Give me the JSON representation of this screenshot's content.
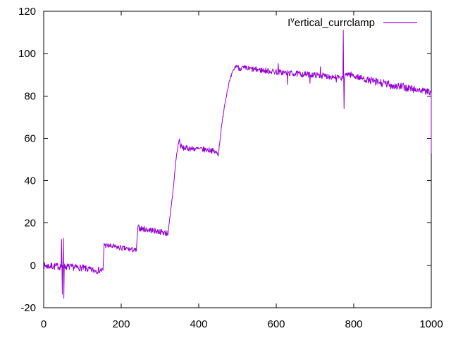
{
  "chart_data": {
    "type": "line",
    "title": "",
    "legend": {
      "full_label": "Iᵛertical_currclamp",
      "pre": "I",
      "sup": "v",
      "post": "ertical_currclamp",
      "position": "top-right"
    },
    "line_color": "#9400d3",
    "axis_color": "#000000",
    "text_color": "#000000",
    "background_color": "#ffffff",
    "xlabel": "",
    "ylabel": "",
    "xlim": [
      0,
      1000
    ],
    "ylim": [
      -20,
      120
    ],
    "xticks": [
      0,
      200,
      400,
      600,
      800,
      1000
    ],
    "yticks": [
      -20,
      0,
      20,
      40,
      60,
      80,
      100,
      120
    ],
    "grid": false,
    "signal": {
      "description": "noisy staircase signal: ~0 until x=154, step to ~9, step to ~17 at x=241, ramp to ~60 at x=350, plateau ~55, rise at x=450 to peak ~94 at x=500, slow decay to ~82 at x=1000, final drop to ~53; spike bursts at x~46-52 (+12/-15) and x~773 (+111/+74)",
      "sample_step": 1,
      "seed": 7,
      "anchors": [
        [
          0,
          -0.3
        ],
        [
          44,
          -0.5
        ],
        [
          56,
          -0.6
        ],
        [
          100,
          -1.2
        ],
        [
          122,
          -2.2
        ],
        [
          153,
          -2.4
        ],
        [
          156,
          10.4
        ],
        [
          159,
          9.4
        ],
        [
          200,
          8.2
        ],
        [
          239,
          7.0
        ],
        [
          243,
          17.9
        ],
        [
          250,
          17.4
        ],
        [
          300,
          15.9
        ],
        [
          321,
          15.1
        ],
        [
          333,
          34
        ],
        [
          342,
          51
        ],
        [
          347,
          57
        ],
        [
          350,
          59.6
        ],
        [
          352,
          56.8
        ],
        [
          357,
          55.5
        ],
        [
          380,
          55.2
        ],
        [
          432,
          54.4
        ],
        [
          446,
          53.1
        ],
        [
          451,
          52.6
        ],
        [
          454,
          58
        ],
        [
          460,
          67
        ],
        [
          466,
          75
        ],
        [
          472,
          81
        ],
        [
          478,
          86
        ],
        [
          485,
          90
        ],
        [
          492,
          93
        ],
        [
          497,
          94.4
        ],
        [
          503,
          93.2
        ],
        [
          515,
          93.1
        ],
        [
          560,
          92.2
        ],
        [
          600,
          91.4
        ],
        [
          640,
          90.6
        ],
        [
          700,
          89.9
        ],
        [
          740,
          89.2
        ],
        [
          762,
          88.8
        ],
        [
          766,
          87.8
        ],
        [
          770,
          88.6
        ],
        [
          777,
          88.6
        ],
        [
          783,
          90.7
        ],
        [
          791,
          90.1
        ],
        [
          820,
          88.4
        ],
        [
          850,
          86.8
        ],
        [
          880,
          85.7
        ],
        [
          910,
          84.7
        ],
        [
          940,
          83.7
        ],
        [
          970,
          82.7
        ],
        [
          1000,
          81.6
        ]
      ],
      "noise_regions": [
        [
          0,
          44,
          1.7
        ],
        [
          44,
          56,
          1.5
        ],
        [
          56,
          153,
          1.6
        ],
        [
          153,
          157,
          0.4
        ],
        [
          157,
          239,
          1.3
        ],
        [
          239,
          244,
          0.4
        ],
        [
          244,
          321,
          1.4
        ],
        [
          321,
          350,
          0.7
        ],
        [
          350,
          360,
          1.5
        ],
        [
          360,
          451,
          1.3
        ],
        [
          451,
          500,
          0.8
        ],
        [
          500,
          762,
          1.4
        ],
        [
          762,
          778,
          0.9
        ],
        [
          778,
          845,
          1.5
        ],
        [
          845,
          958,
          2.0
        ],
        [
          958,
          1000,
          1.5
        ]
      ],
      "spikes": [
        [
          46,
          12.3
        ],
        [
          47.5,
          -13.6
        ],
        [
          50.5,
          12.8
        ],
        [
          52,
          -15.5
        ],
        [
          605,
          95.3
        ],
        [
          629,
          85.3
        ],
        [
          687,
          86.0
        ],
        [
          714,
          93.8
        ],
        [
          755,
          86.5
        ],
        [
          773,
          111
        ],
        [
          774.5,
          74
        ]
      ],
      "end_drop": [
        1000,
        53
      ]
    }
  }
}
